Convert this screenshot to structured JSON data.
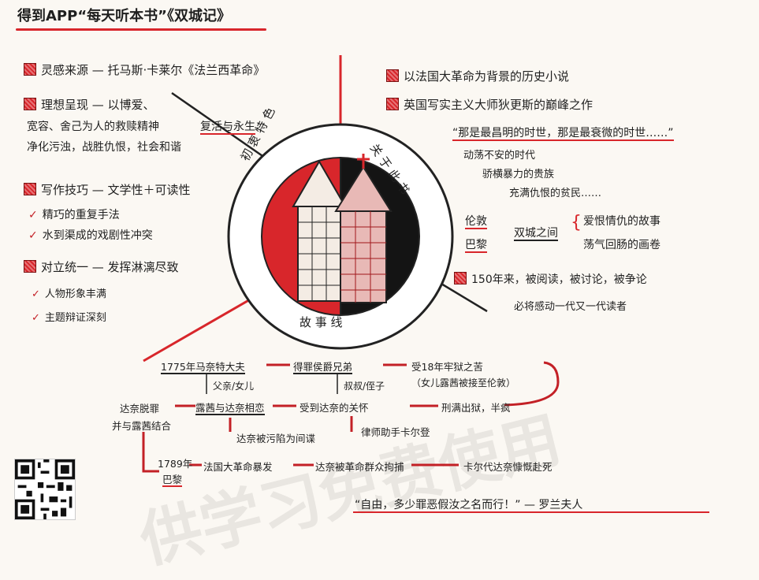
{
  "title": "得到APP“每天听本书”《双城记》",
  "left": {
    "inspiration": "灵感来源 — 托马斯·卡莱尔《法兰西革命》",
    "ideal": "理想呈现 — 以博爱、",
    "ideal_line1": "宽容、舍己为人的救赎精神",
    "ideal_line2": "净化污浊，战胜仇恨，社会和谐",
    "revival": "复活与永生",
    "technique": "写作技巧 — 文学性＋可读性",
    "tech_items": [
      "精巧的重复手法",
      "水到渠成的戏剧性冲突"
    ],
    "unity": "对立统一 — 发挥淋漓尽致",
    "unity_items": [
      "人物形象丰满",
      "主题辩证深刻"
    ]
  },
  "right": {
    "background": "以法国大革命为背景的历史小说",
    "masterpiece": "英国写实主义大师狄更斯的巅峰之作",
    "quote": "“那是最昌明的时世，那是最衰微的时世……”",
    "turbulent": [
      "动荡不安的时代",
      "骄横暴力的贵族",
      "充满仇恨的贫民……"
    ],
    "london": "伦敦",
    "paris": "巴黎",
    "twin": "双城之间",
    "twin_items": [
      "爱恨情仇的故事",
      "荡气回肠的画卷"
    ],
    "years": "150年来，被阅读，被讨论，被争论",
    "future": "必将感动一代又一代读者"
  },
  "circle": {
    "left_arc": "初 衷 特 色",
    "right_arc": "关 于 此 书",
    "bottom_arc": "故 事 线"
  },
  "flow": {
    "n1": "1775年马奈特大夫",
    "n2": "得罪侯爵兄弟",
    "n3": "受18年牢狱之苦",
    "n3b": "（女儿露茜被接至伦敦）",
    "r1": "父亲/女儿",
    "r2": "叔叔/侄子",
    "n4": "露茜与达奈相恋",
    "n5": "受到达奈的关怀",
    "n6": "刑满出狱，半疯",
    "n7": "达奈脱罪",
    "n7b": "并与露茜结合",
    "n8": "达奈被污陷为间谍",
    "n9": "律师助手卡尔登",
    "n10a": "1789年",
    "n10b": "巴黎",
    "n11": "法国大革命暴发",
    "n12": "达奈被革命群众拘捕",
    "n13": "卡尔代达奈慷慨赴死"
  },
  "closing_quote": "“自由，多少罪恶假汝之名而行！” — 罗兰夫人",
  "watermark": "供学习免费使用",
  "colors": {
    "accent": "#d8262b",
    "ink": "#1f1f1f",
    "paper": "#fbf8f3"
  }
}
